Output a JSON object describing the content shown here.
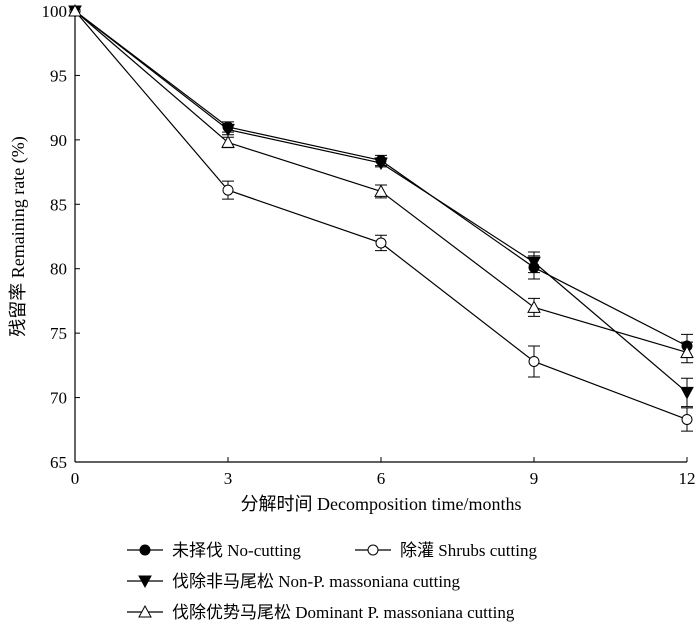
{
  "chart_data": {
    "type": "line",
    "xlabel": "分解时间  Decomposition time/months",
    "ylabel": "残留率 Remaining rate (%)",
    "xlim": [
      0,
      12
    ],
    "ylim": [
      65,
      100
    ],
    "xticks": [
      0,
      3,
      6,
      9,
      12
    ],
    "yticks": [
      65,
      70,
      75,
      80,
      85,
      90,
      95,
      100
    ],
    "x": [
      0,
      3,
      6,
      9,
      12
    ],
    "legend_placement": "bottom",
    "series": [
      {
        "name": "未择伐  No-cutting",
        "marker": "filled-circle",
        "values": [
          100,
          91.0,
          88.4,
          80.1,
          74.0
        ],
        "errors": [
          0,
          0.4,
          0.4,
          0.9,
          0.9
        ]
      },
      {
        "name": "除灌  Shrubs cutting",
        "marker": "open-circle",
        "values": [
          100,
          86.1,
          82.0,
          72.8,
          68.3
        ],
        "errors": [
          0,
          0.7,
          0.6,
          1.2,
          0.9
        ]
      },
      {
        "name": "伐除非马尾松  Non-P. massoniana cutting",
        "marker": "filled-triangle-down",
        "values": [
          100,
          90.8,
          88.2,
          80.5,
          70.4
        ],
        "errors": [
          0,
          0.4,
          0.3,
          0.8,
          1.1
        ]
      },
      {
        "name": "伐除优势马尾松  Dominant P. massoniana cutting",
        "marker": "open-triangle-up",
        "values": [
          100,
          89.8,
          86.0,
          77.0,
          73.5
        ],
        "errors": [
          0,
          0.4,
          0.5,
          0.7,
          0.8
        ]
      }
    ]
  }
}
